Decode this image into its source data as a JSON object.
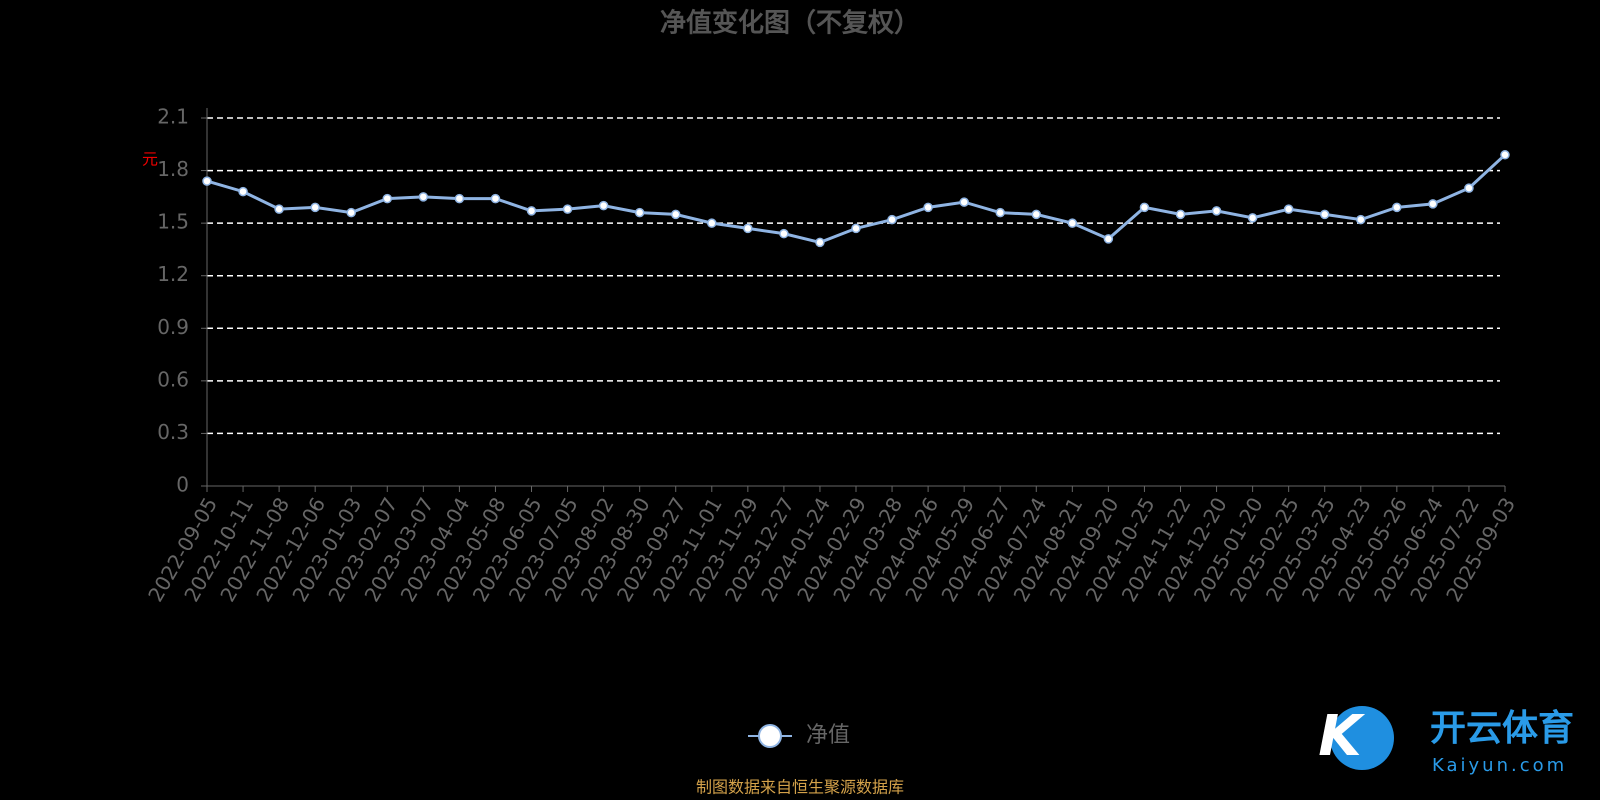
{
  "chart_data": {
    "type": "line",
    "title": "净值变化图（不复权）",
    "y_label": "元",
    "source": "制图数据来自恒生聚源数据库",
    "categories": [
      "2022-09-05",
      "2022-10-11",
      "2022-11-08",
      "2022-12-06",
      "2023-01-03",
      "2023-02-07",
      "2023-03-07",
      "2023-04-04",
      "2023-05-08",
      "2023-06-05",
      "2023-07-05",
      "2023-08-02",
      "2023-08-30",
      "2023-09-27",
      "2023-11-01",
      "2023-11-29",
      "2023-12-27",
      "2024-01-24",
      "2024-02-29",
      "2024-03-28",
      "2024-04-26",
      "2024-05-29",
      "2024-06-27",
      "2024-07-24",
      "2024-08-21",
      "2024-09-20",
      "2024-10-25",
      "2024-11-22",
      "2024-12-20",
      "2025-01-20",
      "2025-02-25",
      "2025-03-25",
      "2025-04-23",
      "2025-05-26",
      "2025-06-24",
      "2025-07-22",
      "2025-09-03"
    ],
    "series": [
      {
        "name": "净值",
        "color": "#8fb4e3",
        "values": [
          1.74,
          1.68,
          1.58,
          1.59,
          1.56,
          1.64,
          1.65,
          1.64,
          1.64,
          1.57,
          1.58,
          1.6,
          1.56,
          1.55,
          1.5,
          1.47,
          1.44,
          1.39,
          1.47,
          1.52,
          1.59,
          1.62,
          1.56,
          1.55,
          1.5,
          1.41,
          1.59,
          1.55,
          1.57,
          1.53,
          1.58,
          1.55,
          1.52,
          1.59,
          1.61,
          1.7,
          1.89
        ]
      }
    ],
    "ylim": [
      0,
      2.1
    ],
    "yticks": [
      0,
      0.3,
      0.6,
      0.9,
      1.2,
      1.5,
      1.8,
      2.1
    ],
    "grid": true
  },
  "watermark": {
    "brand": "开云体育",
    "site": "Kaiyun.com"
  }
}
